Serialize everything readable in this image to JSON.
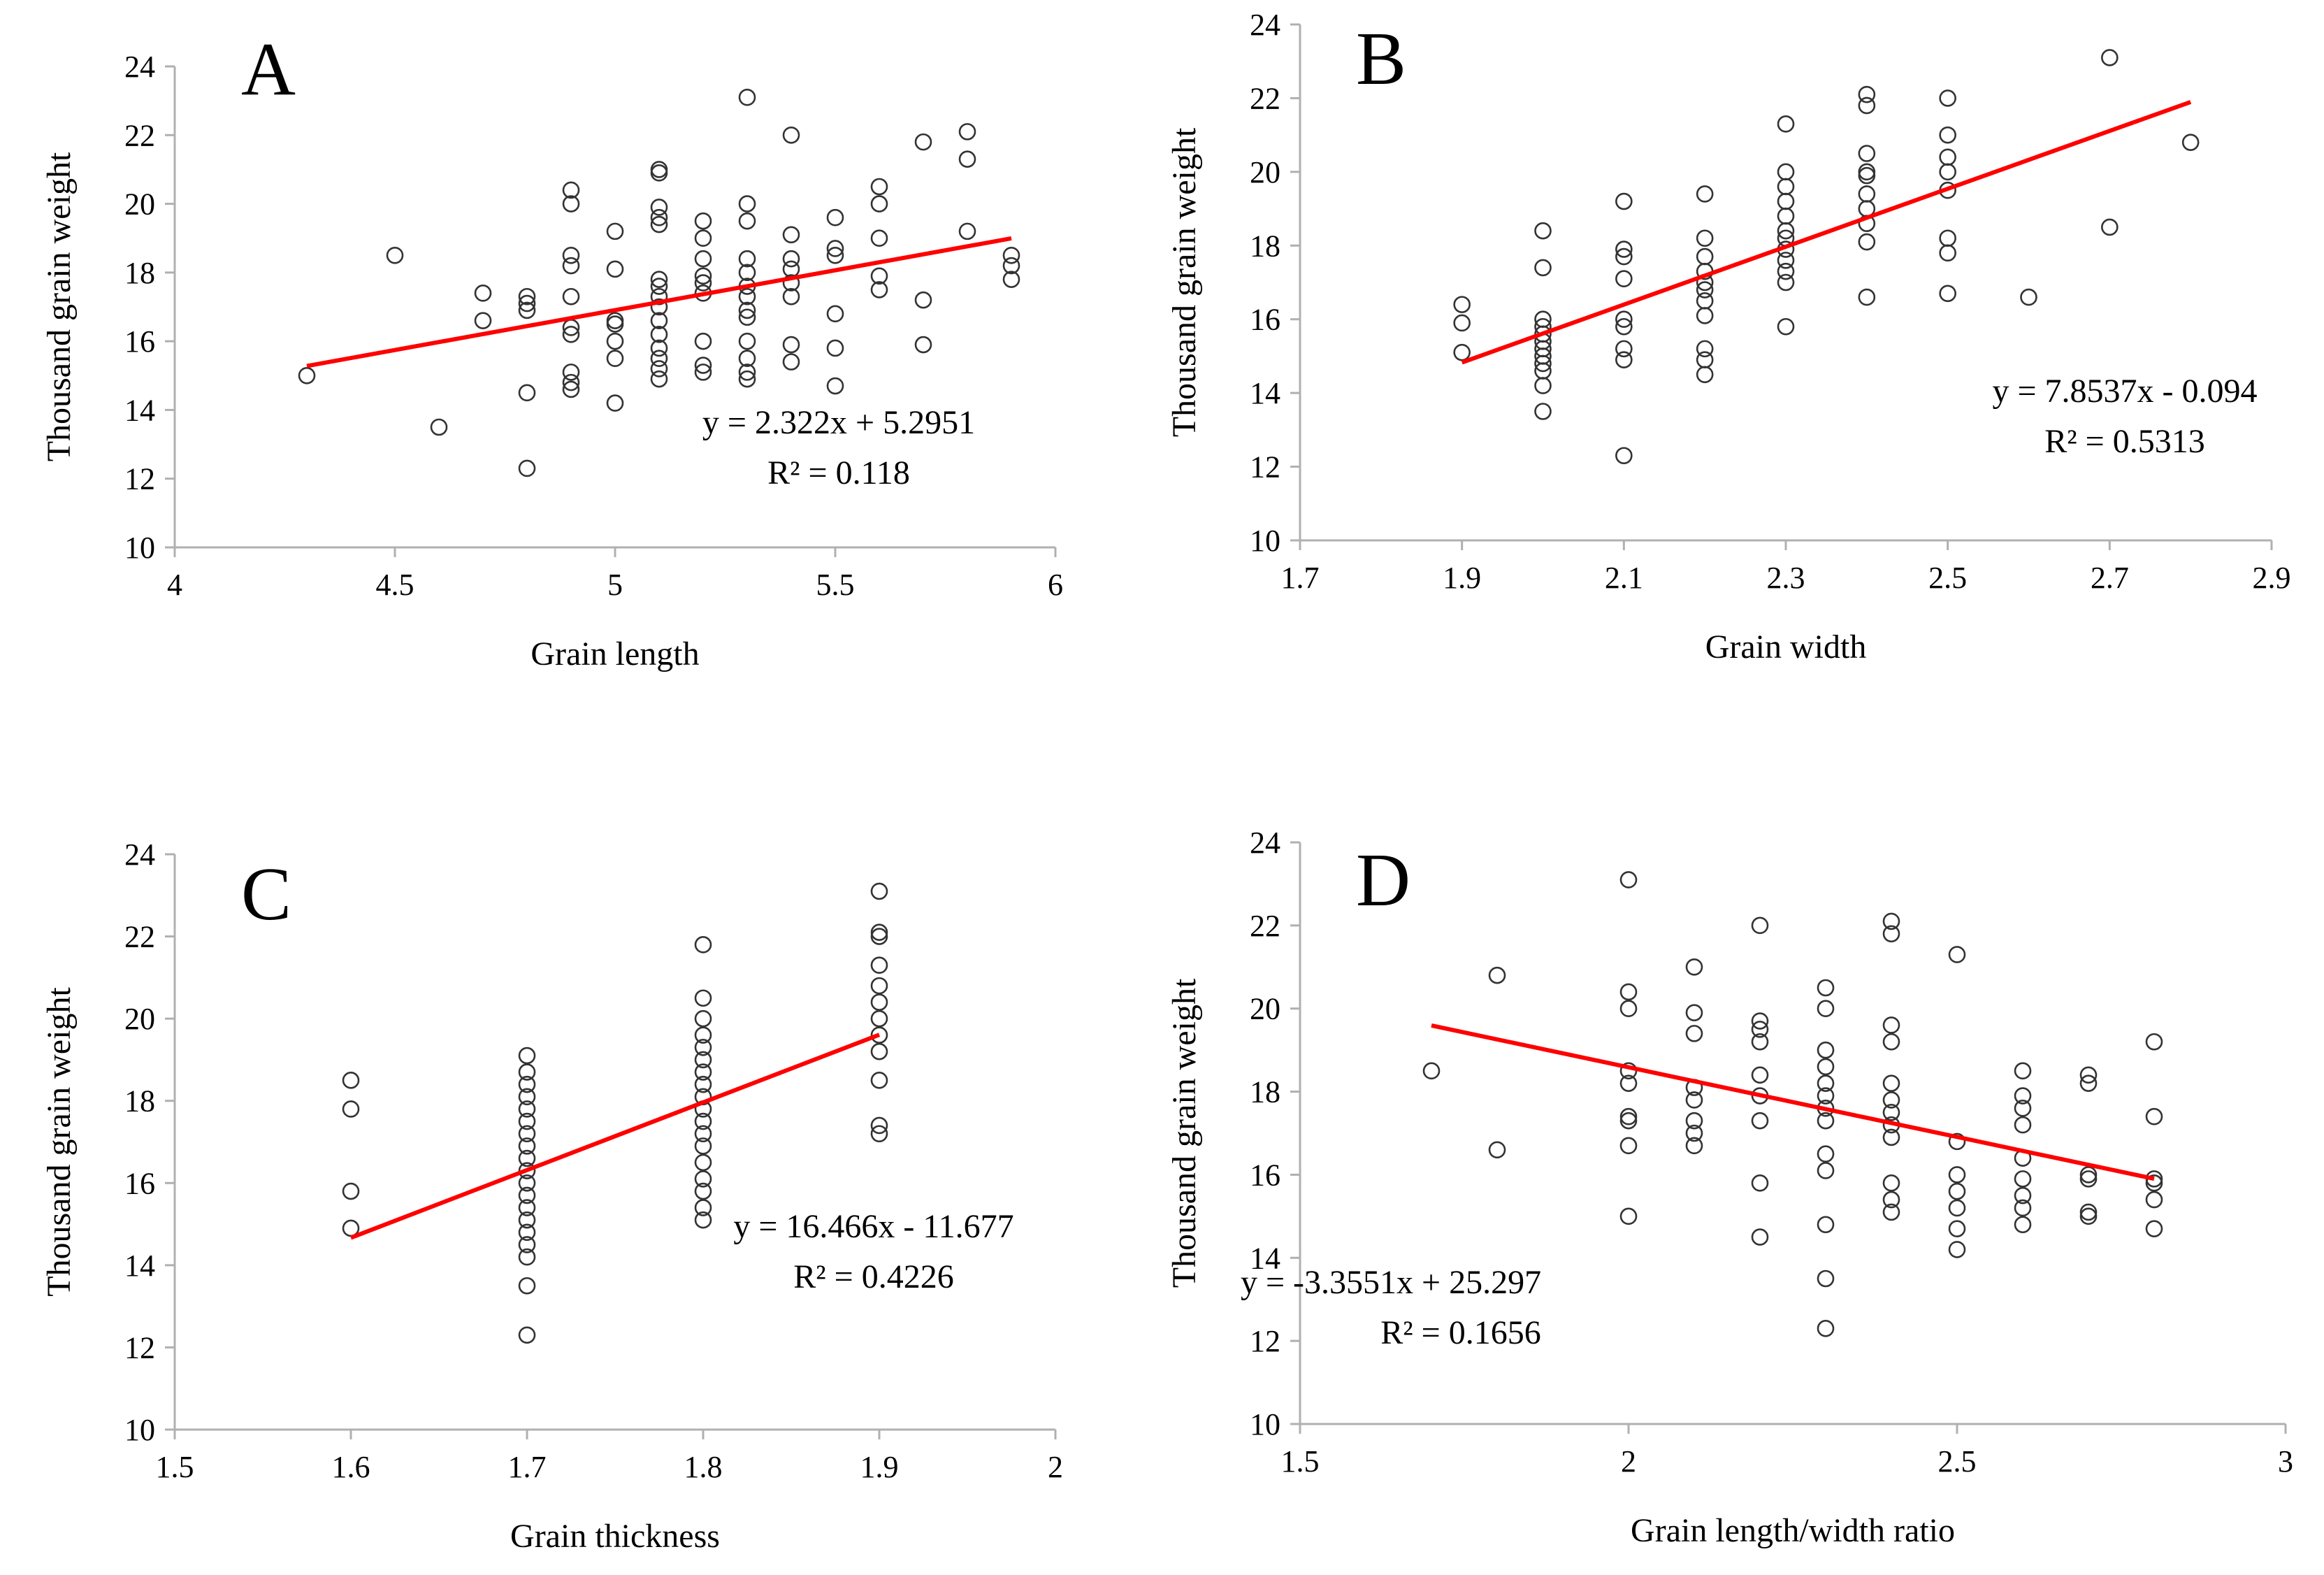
{
  "chart_data": [
    {
      "id": "A",
      "type": "scatter",
      "panel_label": "A",
      "xlabel": "Grain length",
      "ylabel": "Thousand grain weight",
      "xlim": [
        4,
        6
      ],
      "ylim": [
        10,
        24
      ],
      "xticks": [
        4,
        4.5,
        5,
        5.5,
        6
      ],
      "xtick_labels": [
        "4",
        "4.5",
        "5",
        "5.5",
        "6"
      ],
      "yticks": [
        10,
        12,
        14,
        16,
        18,
        20,
        22,
        24
      ],
      "ytick_labels": [
        "10",
        "12",
        "14",
        "16",
        "18",
        "20",
        "22",
        "24"
      ],
      "equation": "y = 2.322x + 5.2951",
      "r2": "R² = 0.118",
      "trendline": {
        "slope": 2.322,
        "intercept": 5.2951,
        "x_range": [
          4.3,
          5.9
        ],
        "color": "#ff0000"
      },
      "points": [
        [
          4.3,
          15.0
        ],
        [
          4.5,
          18.5
        ],
        [
          4.6,
          13.5
        ],
        [
          4.7,
          17.4
        ],
        [
          4.7,
          16.6
        ],
        [
          4.8,
          17.3
        ],
        [
          4.8,
          17.1
        ],
        [
          4.8,
          16.9
        ],
        [
          4.8,
          14.5
        ],
        [
          4.8,
          12.3
        ],
        [
          4.9,
          20.4
        ],
        [
          4.9,
          20.0
        ],
        [
          4.9,
          18.5
        ],
        [
          4.9,
          18.2
        ],
        [
          4.9,
          17.3
        ],
        [
          4.9,
          16.4
        ],
        [
          4.9,
          16.2
        ],
        [
          4.9,
          15.1
        ],
        [
          4.9,
          14.8
        ],
        [
          4.9,
          14.6
        ],
        [
          5.0,
          19.2
        ],
        [
          5.0,
          18.1
        ],
        [
          5.0,
          16.6
        ],
        [
          5.0,
          16.5
        ],
        [
          5.0,
          16.0
        ],
        [
          5.0,
          15.5
        ],
        [
          5.0,
          14.2
        ],
        [
          5.1,
          21.0
        ],
        [
          5.1,
          20.9
        ],
        [
          5.1,
          19.9
        ],
        [
          5.1,
          19.6
        ],
        [
          5.1,
          19.4
        ],
        [
          5.1,
          17.8
        ],
        [
          5.1,
          17.6
        ],
        [
          5.1,
          17.3
        ],
        [
          5.1,
          17.0
        ],
        [
          5.1,
          16.6
        ],
        [
          5.1,
          16.2
        ],
        [
          5.1,
          15.8
        ],
        [
          5.1,
          15.5
        ],
        [
          5.1,
          15.2
        ],
        [
          5.1,
          14.9
        ],
        [
          5.2,
          19.5
        ],
        [
          5.2,
          19.0
        ],
        [
          5.2,
          18.4
        ],
        [
          5.2,
          17.9
        ],
        [
          5.2,
          17.7
        ],
        [
          5.2,
          17.4
        ],
        [
          5.2,
          16.0
        ],
        [
          5.2,
          15.3
        ],
        [
          5.2,
          15.1
        ],
        [
          5.3,
          23.1
        ],
        [
          5.3,
          20.0
        ],
        [
          5.3,
          19.5
        ],
        [
          5.3,
          18.4
        ],
        [
          5.3,
          18.0
        ],
        [
          5.3,
          17.6
        ],
        [
          5.3,
          17.3
        ],
        [
          5.3,
          16.9
        ],
        [
          5.3,
          16.7
        ],
        [
          5.3,
          16.0
        ],
        [
          5.3,
          15.5
        ],
        [
          5.3,
          15.1
        ],
        [
          5.3,
          14.9
        ],
        [
          5.4,
          22.0
        ],
        [
          5.4,
          19.1
        ],
        [
          5.4,
          18.4
        ],
        [
          5.4,
          18.1
        ],
        [
          5.4,
          17.7
        ],
        [
          5.4,
          17.3
        ],
        [
          5.4,
          15.9
        ],
        [
          5.4,
          15.4
        ],
        [
          5.5,
          19.6
        ],
        [
          5.5,
          18.7
        ],
        [
          5.5,
          18.5
        ],
        [
          5.5,
          16.8
        ],
        [
          5.5,
          15.8
        ],
        [
          5.5,
          14.7
        ],
        [
          5.6,
          20.5
        ],
        [
          5.6,
          20.0
        ],
        [
          5.6,
          19.0
        ],
        [
          5.6,
          17.9
        ],
        [
          5.6,
          17.5
        ],
        [
          5.7,
          21.8
        ],
        [
          5.7,
          17.2
        ],
        [
          5.7,
          15.9
        ],
        [
          5.8,
          22.1
        ],
        [
          5.8,
          21.3
        ],
        [
          5.8,
          19.2
        ],
        [
          5.9,
          18.5
        ],
        [
          5.9,
          18.2
        ],
        [
          5.9,
          17.8
        ]
      ]
    },
    {
      "id": "B",
      "type": "scatter",
      "panel_label": "B",
      "xlabel": "Grain width",
      "ylabel": "Thousand grain weight",
      "xlim": [
        1.7,
        2.9
      ],
      "ylim": [
        10,
        24
      ],
      "xticks": [
        1.7,
        1.9,
        2.1,
        2.3,
        2.5,
        2.7,
        2.9
      ],
      "xtick_labels": [
        "1.7",
        "1.9",
        "2.1",
        "2.3",
        "2.5",
        "2.7",
        "2.9"
      ],
      "yticks": [
        10,
        12,
        14,
        16,
        18,
        20,
        22,
        24
      ],
      "ytick_labels": [
        "10",
        "12",
        "14",
        "16",
        "18",
        "20",
        "22",
        "24"
      ],
      "equation": "y = 7.8537x - 0.094",
      "r2": "R² = 0.5313",
      "trendline": {
        "slope": 7.8537,
        "intercept": -0.094,
        "x_range": [
          1.9,
          2.8
        ],
        "color": "#ff0000"
      },
      "points": [
        [
          1.9,
          16.4
        ],
        [
          1.9,
          15.9
        ],
        [
          1.9,
          15.1
        ],
        [
          2.0,
          18.4
        ],
        [
          2.0,
          17.4
        ],
        [
          2.0,
          16.0
        ],
        [
          2.0,
          15.8
        ],
        [
          2.0,
          15.6
        ],
        [
          2.0,
          15.4
        ],
        [
          2.0,
          15.2
        ],
        [
          2.0,
          15.0
        ],
        [
          2.0,
          14.8
        ],
        [
          2.0,
          14.6
        ],
        [
          2.0,
          14.2
        ],
        [
          2.0,
          13.5
        ],
        [
          2.1,
          19.2
        ],
        [
          2.1,
          17.9
        ],
        [
          2.1,
          17.7
        ],
        [
          2.1,
          17.1
        ],
        [
          2.1,
          16.0
        ],
        [
          2.1,
          15.8
        ],
        [
          2.1,
          15.2
        ],
        [
          2.1,
          14.9
        ],
        [
          2.1,
          12.3
        ],
        [
          2.2,
          19.4
        ],
        [
          2.2,
          18.2
        ],
        [
          2.2,
          17.7
        ],
        [
          2.2,
          17.3
        ],
        [
          2.2,
          17.0
        ],
        [
          2.2,
          16.8
        ],
        [
          2.2,
          16.5
        ],
        [
          2.2,
          16.1
        ],
        [
          2.2,
          15.2
        ],
        [
          2.2,
          14.9
        ],
        [
          2.2,
          14.5
        ],
        [
          2.3,
          21.3
        ],
        [
          2.3,
          20.0
        ],
        [
          2.3,
          19.6
        ],
        [
          2.3,
          19.2
        ],
        [
          2.3,
          18.8
        ],
        [
          2.3,
          18.4
        ],
        [
          2.3,
          18.2
        ],
        [
          2.3,
          17.9
        ],
        [
          2.3,
          17.6
        ],
        [
          2.3,
          17.3
        ],
        [
          2.3,
          17.0
        ],
        [
          2.3,
          15.8
        ],
        [
          2.4,
          22.1
        ],
        [
          2.4,
          21.8
        ],
        [
          2.4,
          20.5
        ],
        [
          2.4,
          20.0
        ],
        [
          2.4,
          19.9
        ],
        [
          2.4,
          19.4
        ],
        [
          2.4,
          19.0
        ],
        [
          2.4,
          18.6
        ],
        [
          2.4,
          18.1
        ],
        [
          2.4,
          16.6
        ],
        [
          2.5,
          22.0
        ],
        [
          2.5,
          21.0
        ],
        [
          2.5,
          20.4
        ],
        [
          2.5,
          20.0
        ],
        [
          2.5,
          19.5
        ],
        [
          2.5,
          18.2
        ],
        [
          2.5,
          17.8
        ],
        [
          2.5,
          16.7
        ],
        [
          2.6,
          16.6
        ],
        [
          2.7,
          23.1
        ],
        [
          2.7,
          18.5
        ],
        [
          2.8,
          20.8
        ]
      ]
    },
    {
      "id": "C",
      "type": "scatter",
      "panel_label": "C",
      "xlabel": "Grain thickness",
      "ylabel": "Thousand grain weight",
      "xlim": [
        1.5,
        2
      ],
      "ylim": [
        10,
        24
      ],
      "xticks": [
        1.5,
        1.6,
        1.7,
        1.8,
        1.9,
        2
      ],
      "xtick_labels": [
        "1.5",
        "1.6",
        "1.7",
        "1.8",
        "1.9",
        "2"
      ],
      "yticks": [
        10,
        12,
        14,
        16,
        18,
        20,
        22,
        24
      ],
      "ytick_labels": [
        "10",
        "12",
        "14",
        "16",
        "18",
        "20",
        "22",
        "24"
      ],
      "equation": "y = 16.466x - 11.677",
      "r2": "R² = 0.4226",
      "trendline": {
        "slope": 16.466,
        "intercept": -11.677,
        "x_range": [
          1.6,
          1.9
        ],
        "color": "#ff0000"
      },
      "points": [
        [
          1.6,
          18.5
        ],
        [
          1.6,
          17.8
        ],
        [
          1.6,
          15.8
        ],
        [
          1.6,
          14.9
        ],
        [
          1.7,
          19.1
        ],
        [
          1.7,
          18.7
        ],
        [
          1.7,
          18.4
        ],
        [
          1.7,
          18.1
        ],
        [
          1.7,
          17.8
        ],
        [
          1.7,
          17.5
        ],
        [
          1.7,
          17.2
        ],
        [
          1.7,
          16.9
        ],
        [
          1.7,
          16.6
        ],
        [
          1.7,
          16.3
        ],
        [
          1.7,
          16.0
        ],
        [
          1.7,
          15.7
        ],
        [
          1.7,
          15.4
        ],
        [
          1.7,
          15.1
        ],
        [
          1.7,
          14.8
        ],
        [
          1.7,
          14.5
        ],
        [
          1.7,
          14.2
        ],
        [
          1.7,
          13.5
        ],
        [
          1.7,
          12.3
        ],
        [
          1.8,
          21.8
        ],
        [
          1.8,
          20.5
        ],
        [
          1.8,
          20.0
        ],
        [
          1.8,
          19.6
        ],
        [
          1.8,
          19.3
        ],
        [
          1.8,
          19.0
        ],
        [
          1.8,
          18.7
        ],
        [
          1.8,
          18.4
        ],
        [
          1.8,
          18.1
        ],
        [
          1.8,
          17.8
        ],
        [
          1.8,
          17.5
        ],
        [
          1.8,
          17.2
        ],
        [
          1.8,
          16.9
        ],
        [
          1.8,
          16.5
        ],
        [
          1.8,
          16.1
        ],
        [
          1.8,
          15.8
        ],
        [
          1.8,
          15.4
        ],
        [
          1.8,
          15.1
        ],
        [
          1.9,
          23.1
        ],
        [
          1.9,
          22.1
        ],
        [
          1.9,
          22.0
        ],
        [
          1.9,
          21.3
        ],
        [
          1.9,
          20.8
        ],
        [
          1.9,
          20.4
        ],
        [
          1.9,
          20.0
        ],
        [
          1.9,
          19.6
        ],
        [
          1.9,
          19.2
        ],
        [
          1.9,
          18.5
        ],
        [
          1.9,
          17.4
        ],
        [
          1.9,
          17.2
        ]
      ]
    },
    {
      "id": "D",
      "type": "scatter",
      "panel_label": "D",
      "xlabel": "Grain length/width ratio",
      "ylabel": "Thousand grain weight",
      "xlim": [
        1.5,
        3
      ],
      "ylim": [
        10,
        24
      ],
      "xticks": [
        1.5,
        2,
        2.5,
        3
      ],
      "xtick_labels": [
        "1.5",
        "2",
        "2.5",
        "3"
      ],
      "yticks": [
        10,
        12,
        14,
        16,
        18,
        20,
        22,
        24
      ],
      "ytick_labels": [
        "10",
        "12",
        "14",
        "16",
        "18",
        "20",
        "22",
        "24"
      ],
      "equation": "y = -3.3551x + 25.297",
      "r2": "R² = 0.1656",
      "trendline": {
        "slope": -3.3551,
        "intercept": 25.297,
        "x_range": [
          1.7,
          2.8
        ],
        "color": "#ff0000"
      },
      "points": [
        [
          1.7,
          18.5
        ],
        [
          1.8,
          20.8
        ],
        [
          1.8,
          16.6
        ],
        [
          2.0,
          23.1
        ],
        [
          2.0,
          20.4
        ],
        [
          2.0,
          20.0
        ],
        [
          2.0,
          18.5
        ],
        [
          2.0,
          18.2
        ],
        [
          2.0,
          17.4
        ],
        [
          2.0,
          17.3
        ],
        [
          2.0,
          16.7
        ],
        [
          2.0,
          15.0
        ],
        [
          2.1,
          21.0
        ],
        [
          2.1,
          19.9
        ],
        [
          2.1,
          19.4
        ],
        [
          2.1,
          18.1
        ],
        [
          2.1,
          17.8
        ],
        [
          2.1,
          17.3
        ],
        [
          2.1,
          17.0
        ],
        [
          2.1,
          16.7
        ],
        [
          2.2,
          22.0
        ],
        [
          2.2,
          19.7
        ],
        [
          2.2,
          19.5
        ],
        [
          2.2,
          19.2
        ],
        [
          2.2,
          18.4
        ],
        [
          2.2,
          17.9
        ],
        [
          2.2,
          17.3
        ],
        [
          2.2,
          15.8
        ],
        [
          2.2,
          14.5
        ],
        [
          2.3,
          20.5
        ],
        [
          2.3,
          20.0
        ],
        [
          2.3,
          19.0
        ],
        [
          2.3,
          18.6
        ],
        [
          2.3,
          18.2
        ],
        [
          2.3,
          17.9
        ],
        [
          2.3,
          17.6
        ],
        [
          2.3,
          17.3
        ],
        [
          2.3,
          16.5
        ],
        [
          2.3,
          16.1
        ],
        [
          2.3,
          14.8
        ],
        [
          2.3,
          13.5
        ],
        [
          2.3,
          12.3
        ],
        [
          2.4,
          22.1
        ],
        [
          2.4,
          21.8
        ],
        [
          2.4,
          19.6
        ],
        [
          2.4,
          19.2
        ],
        [
          2.4,
          18.2
        ],
        [
          2.4,
          17.8
        ],
        [
          2.4,
          17.5
        ],
        [
          2.4,
          17.2
        ],
        [
          2.4,
          16.9
        ],
        [
          2.4,
          15.8
        ],
        [
          2.4,
          15.4
        ],
        [
          2.4,
          15.1
        ],
        [
          2.5,
          21.3
        ],
        [
          2.5,
          16.8
        ],
        [
          2.5,
          16.0
        ],
        [
          2.5,
          15.6
        ],
        [
          2.5,
          15.2
        ],
        [
          2.5,
          14.7
        ],
        [
          2.5,
          14.2
        ],
        [
          2.6,
          18.5
        ],
        [
          2.6,
          17.9
        ],
        [
          2.6,
          17.6
        ],
        [
          2.6,
          17.2
        ],
        [
          2.6,
          16.4
        ],
        [
          2.6,
          15.9
        ],
        [
          2.6,
          15.5
        ],
        [
          2.6,
          15.2
        ],
        [
          2.6,
          14.8
        ],
        [
          2.7,
          18.4
        ],
        [
          2.7,
          18.2
        ],
        [
          2.7,
          16.0
        ],
        [
          2.7,
          15.9
        ],
        [
          2.7,
          15.1
        ],
        [
          2.7,
          15.0
        ],
        [
          2.8,
          19.2
        ],
        [
          2.8,
          17.4
        ],
        [
          2.8,
          15.9
        ],
        [
          2.8,
          15.8
        ],
        [
          2.8,
          15.4
        ],
        [
          2.8,
          14.7
        ]
      ]
    }
  ]
}
